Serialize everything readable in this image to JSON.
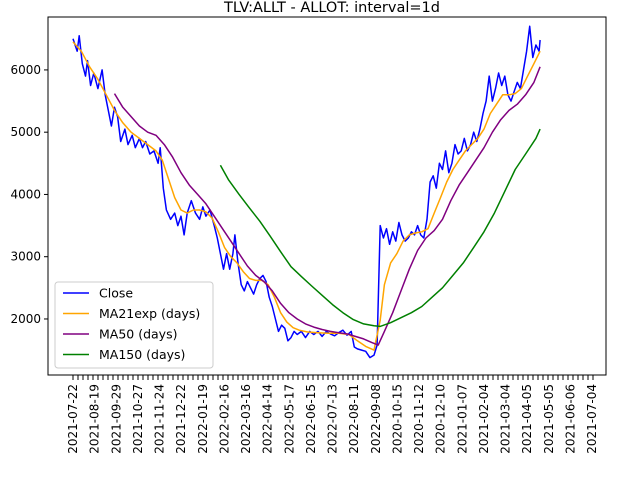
{
  "chart_data": {
    "type": "line",
    "title": "TLV:ALLT - ALLOT: interval=1d",
    "xlabel": "",
    "ylabel": "",
    "ylim": [
      1100,
      6850
    ],
    "yticks": [
      2000,
      3000,
      4000,
      5000,
      6000
    ],
    "x_tick_labels": [
      "2021-07-22",
      "2021-08-19",
      "2021-09-29",
      "2021-10-27",
      "2021-11-24",
      "2021-12-22",
      "2022-01-19",
      "2022-02-16",
      "2022-03-16",
      "2022-04-14",
      "2022-05-17",
      "2022-06-15",
      "2022-07-13",
      "2022-08-11",
      "2022-09-08",
      "2020-10-15",
      "2020-11-12",
      "2020-12-10",
      "2021-01-07",
      "2021-02-04",
      "2021-03-04",
      "2021-04-05",
      "2021-05-05",
      "2021-06-06",
      "2021-07-04"
    ],
    "x_index_range": [
      0,
      500
    ],
    "legend": {
      "position": "lower-left"
    },
    "series": [
      {
        "name": "Close",
        "color": "#0000ff",
        "points": [
          [
            0,
            6500
          ],
          [
            4,
            6300
          ],
          [
            6,
            6550
          ],
          [
            9,
            6100
          ],
          [
            12,
            5900
          ],
          [
            14,
            6150
          ],
          [
            17,
            5750
          ],
          [
            20,
            5950
          ],
          [
            24,
            5700
          ],
          [
            28,
            6000
          ],
          [
            31,
            5600
          ],
          [
            34,
            5350
          ],
          [
            37,
            5100
          ],
          [
            40,
            5400
          ],
          [
            43,
            5250
          ],
          [
            46,
            4850
          ],
          [
            50,
            5050
          ],
          [
            53,
            4800
          ],
          [
            57,
            4950
          ],
          [
            60,
            4750
          ],
          [
            64,
            4900
          ],
          [
            67,
            4750
          ],
          [
            70,
            4850
          ],
          [
            74,
            4650
          ],
          [
            78,
            4700
          ],
          [
            82,
            4500
          ],
          [
            84,
            4750
          ],
          [
            87,
            4100
          ],
          [
            90,
            3750
          ],
          [
            94,
            3600
          ],
          [
            98,
            3700
          ],
          [
            101,
            3500
          ],
          [
            104,
            3650
          ],
          [
            107,
            3350
          ],
          [
            110,
            3700
          ],
          [
            114,
            3900
          ],
          [
            118,
            3700
          ],
          [
            122,
            3600
          ],
          [
            125,
            3800
          ],
          [
            128,
            3650
          ],
          [
            132,
            3750
          ],
          [
            136,
            3500
          ],
          [
            139,
            3300
          ],
          [
            142,
            3050
          ],
          [
            145,
            2800
          ],
          [
            148,
            3050
          ],
          [
            151,
            2800
          ],
          [
            154,
            3050
          ],
          [
            156,
            3350
          ],
          [
            159,
            2900
          ],
          [
            162,
            2550
          ],
          [
            165,
            2450
          ],
          [
            168,
            2600
          ],
          [
            171,
            2500
          ],
          [
            174,
            2400
          ],
          [
            177,
            2550
          ],
          [
            180,
            2650
          ],
          [
            183,
            2700
          ],
          [
            186,
            2600
          ],
          [
            189,
            2350
          ],
          [
            192,
            2200
          ],
          [
            195,
            2000
          ],
          [
            198,
            1800
          ],
          [
            201,
            1900
          ],
          [
            204,
            1850
          ],
          [
            207,
            1650
          ],
          [
            210,
            1700
          ],
          [
            213,
            1800
          ],
          [
            216,
            1750
          ],
          [
            220,
            1800
          ],
          [
            224,
            1700
          ],
          [
            228,
            1800
          ],
          [
            232,
            1750
          ],
          [
            236,
            1800
          ],
          [
            240,
            1720
          ],
          [
            244,
            1800
          ],
          [
            248,
            1760
          ],
          [
            252,
            1730
          ],
          [
            256,
            1780
          ],
          [
            260,
            1820
          ],
          [
            264,
            1740
          ],
          [
            268,
            1800
          ],
          [
            271,
            1550
          ],
          [
            274,
            1520
          ],
          [
            278,
            1500
          ],
          [
            282,
            1480
          ],
          [
            286,
            1380
          ],
          [
            290,
            1420
          ],
          [
            293,
            1580
          ],
          [
            296,
            3500
          ],
          [
            299,
            3300
          ],
          [
            302,
            3450
          ],
          [
            305,
            3200
          ],
          [
            308,
            3400
          ],
          [
            311,
            3250
          ],
          [
            314,
            3550
          ],
          [
            317,
            3350
          ],
          [
            320,
            3250
          ],
          [
            323,
            3300
          ],
          [
            326,
            3400
          ],
          [
            329,
            3350
          ],
          [
            332,
            3500
          ],
          [
            335,
            3350
          ],
          [
            338,
            3300
          ],
          [
            341,
            3600
          ],
          [
            344,
            4200
          ],
          [
            347,
            4300
          ],
          [
            350,
            4100
          ],
          [
            353,
            4500
          ],
          [
            356,
            4400
          ],
          [
            359,
            4700
          ],
          [
            362,
            4350
          ],
          [
            365,
            4500
          ],
          [
            368,
            4800
          ],
          [
            371,
            4650
          ],
          [
            374,
            4700
          ],
          [
            377,
            4900
          ],
          [
            380,
            4700
          ],
          [
            383,
            4800
          ],
          [
            386,
            5000
          ],
          [
            389,
            4850
          ],
          [
            392,
            5050
          ],
          [
            395,
            5300
          ],
          [
            398,
            5500
          ],
          [
            401,
            5900
          ],
          [
            404,
            5500
          ],
          [
            407,
            5700
          ],
          [
            410,
            5950
          ],
          [
            413,
            5750
          ],
          [
            416,
            5900
          ],
          [
            419,
            5600
          ],
          [
            422,
            5500
          ],
          [
            425,
            5650
          ],
          [
            428,
            5800
          ],
          [
            431,
            5700
          ],
          [
            434,
            6000
          ],
          [
            437,
            6300
          ],
          [
            440,
            6700
          ],
          [
            443,
            6200
          ],
          [
            446,
            6400
          ],
          [
            449,
            6300
          ],
          [
            450,
            6480
          ]
        ]
      },
      {
        "name": "MA21exp (days)",
        "color": "#ffa500",
        "points": [
          [
            0,
            6450
          ],
          [
            8,
            6300
          ],
          [
            16,
            6050
          ],
          [
            24,
            5850
          ],
          [
            32,
            5600
          ],
          [
            40,
            5350
          ],
          [
            48,
            5150
          ],
          [
            56,
            5000
          ],
          [
            64,
            4900
          ],
          [
            72,
            4800
          ],
          [
            80,
            4700
          ],
          [
            86,
            4550
          ],
          [
            92,
            4250
          ],
          [
            98,
            3950
          ],
          [
            104,
            3750
          ],
          [
            110,
            3700
          ],
          [
            116,
            3750
          ],
          [
            122,
            3750
          ],
          [
            128,
            3720
          ],
          [
            134,
            3620
          ],
          [
            140,
            3400
          ],
          [
            146,
            3150
          ],
          [
            152,
            3000
          ],
          [
            158,
            2900
          ],
          [
            164,
            2760
          ],
          [
            170,
            2650
          ],
          [
            176,
            2620
          ],
          [
            182,
            2620
          ],
          [
            188,
            2550
          ],
          [
            194,
            2350
          ],
          [
            200,
            2100
          ],
          [
            206,
            1950
          ],
          [
            212,
            1860
          ],
          [
            218,
            1820
          ],
          [
            226,
            1790
          ],
          [
            236,
            1780
          ],
          [
            246,
            1770
          ],
          [
            256,
            1770
          ],
          [
            266,
            1750
          ],
          [
            274,
            1650
          ],
          [
            282,
            1560
          ],
          [
            290,
            1500
          ],
          [
            296,
            1980
          ],
          [
            300,
            2550
          ],
          [
            306,
            2900
          ],
          [
            312,
            3050
          ],
          [
            318,
            3250
          ],
          [
            324,
            3350
          ],
          [
            330,
            3380
          ],
          [
            336,
            3400
          ],
          [
            342,
            3450
          ],
          [
            348,
            3700
          ],
          [
            354,
            3950
          ],
          [
            360,
            4200
          ],
          [
            366,
            4400
          ],
          [
            372,
            4550
          ],
          [
            378,
            4700
          ],
          [
            384,
            4800
          ],
          [
            390,
            4900
          ],
          [
            396,
            5050
          ],
          [
            402,
            5300
          ],
          [
            408,
            5450
          ],
          [
            414,
            5600
          ],
          [
            420,
            5600
          ],
          [
            426,
            5620
          ],
          [
            432,
            5700
          ],
          [
            438,
            5900
          ],
          [
            444,
            6100
          ],
          [
            450,
            6300
          ]
        ]
      },
      {
        "name": "MA50 (days)",
        "color": "#800080",
        "points": [
          [
            40,
            5620
          ],
          [
            48,
            5400
          ],
          [
            56,
            5250
          ],
          [
            64,
            5100
          ],
          [
            72,
            5000
          ],
          [
            80,
            4950
          ],
          [
            88,
            4800
          ],
          [
            96,
            4600
          ],
          [
            104,
            4350
          ],
          [
            112,
            4150
          ],
          [
            120,
            4000
          ],
          [
            128,
            3850
          ],
          [
            136,
            3650
          ],
          [
            144,
            3450
          ],
          [
            152,
            3250
          ],
          [
            160,
            3050
          ],
          [
            168,
            2850
          ],
          [
            176,
            2700
          ],
          [
            184,
            2600
          ],
          [
            192,
            2450
          ],
          [
            200,
            2250
          ],
          [
            208,
            2100
          ],
          [
            216,
            2000
          ],
          [
            224,
            1920
          ],
          [
            232,
            1870
          ],
          [
            240,
            1830
          ],
          [
            248,
            1800
          ],
          [
            256,
            1780
          ],
          [
            264,
            1760
          ],
          [
            272,
            1720
          ],
          [
            280,
            1680
          ],
          [
            288,
            1620
          ],
          [
            294,
            1580
          ],
          [
            300,
            1800
          ],
          [
            308,
            2100
          ],
          [
            316,
            2450
          ],
          [
            324,
            2800
          ],
          [
            332,
            3100
          ],
          [
            340,
            3300
          ],
          [
            348,
            3420
          ],
          [
            356,
            3600
          ],
          [
            364,
            3900
          ],
          [
            372,
            4150
          ],
          [
            380,
            4350
          ],
          [
            388,
            4550
          ],
          [
            396,
            4750
          ],
          [
            404,
            5000
          ],
          [
            412,
            5200
          ],
          [
            420,
            5350
          ],
          [
            428,
            5450
          ],
          [
            436,
            5600
          ],
          [
            444,
            5800
          ],
          [
            450,
            6050
          ]
        ]
      },
      {
        "name": "MA150 (days)",
        "color": "#008000",
        "points": [
          [
            142,
            4470
          ],
          [
            150,
            4230
          ],
          [
            160,
            4000
          ],
          [
            170,
            3780
          ],
          [
            180,
            3570
          ],
          [
            190,
            3330
          ],
          [
            200,
            3080
          ],
          [
            210,
            2840
          ],
          [
            220,
            2680
          ],
          [
            230,
            2530
          ],
          [
            240,
            2380
          ],
          [
            250,
            2230
          ],
          [
            260,
            2100
          ],
          [
            270,
            1990
          ],
          [
            280,
            1920
          ],
          [
            290,
            1890
          ],
          [
            296,
            1880
          ],
          [
            306,
            1940
          ],
          [
            316,
            2020
          ],
          [
            326,
            2100
          ],
          [
            336,
            2200
          ],
          [
            346,
            2350
          ],
          [
            356,
            2500
          ],
          [
            366,
            2700
          ],
          [
            376,
            2900
          ],
          [
            386,
            3150
          ],
          [
            396,
            3400
          ],
          [
            406,
            3700
          ],
          [
            416,
            4050
          ],
          [
            426,
            4400
          ],
          [
            436,
            4650
          ],
          [
            446,
            4900
          ],
          [
            450,
            5050
          ]
        ]
      }
    ]
  }
}
